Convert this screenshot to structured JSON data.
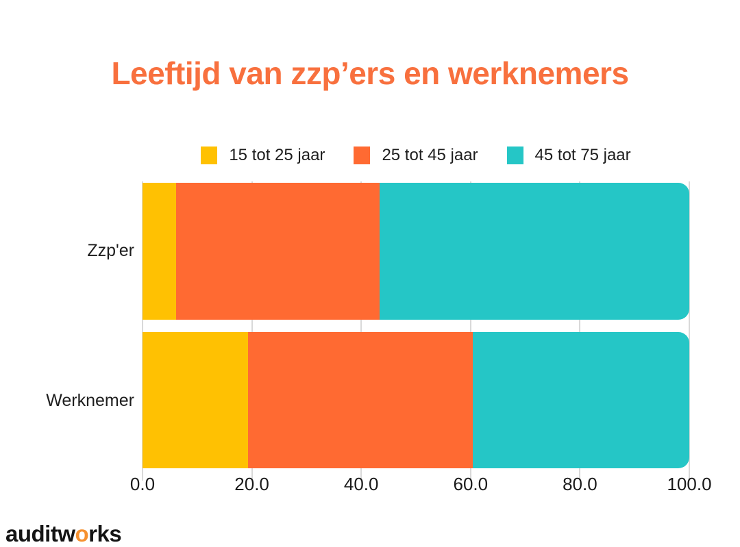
{
  "chart_data": {
    "type": "bar",
    "orientation": "horizontal",
    "stacked": true,
    "title": "Leeftijd van zzp’ers en werknemers",
    "categories": [
      "Zzp'er",
      "Werknemer"
    ],
    "series": [
      {
        "name": "15 tot 25 jaar",
        "color": "#FFC102",
        "values": [
          6.2,
          19.3
        ]
      },
      {
        "name": "25 tot 45 jaar",
        "color": "#FF6A32",
        "values": [
          37.2,
          41.1
        ]
      },
      {
        "name": "45 tot 75 jaar",
        "color": "#25C6C6",
        "values": [
          56.6,
          39.6
        ]
      }
    ],
    "xlim": [
      0,
      100
    ],
    "xticks": [
      "0.0",
      "20.0",
      "40.0",
      "60.0",
      "80.0",
      "100.0"
    ],
    "grid": true,
    "gridline_color": "#D9D9D9",
    "legend_position": "top"
  },
  "colors": {
    "title": "#F8703E",
    "text": "#1E1E1E",
    "logo_text": "#141414",
    "logo_accent": "#F6912F"
  },
  "footer": {
    "logo": {
      "prefix": "auditw",
      "accent": "o",
      "suffix": "rks"
    }
  }
}
